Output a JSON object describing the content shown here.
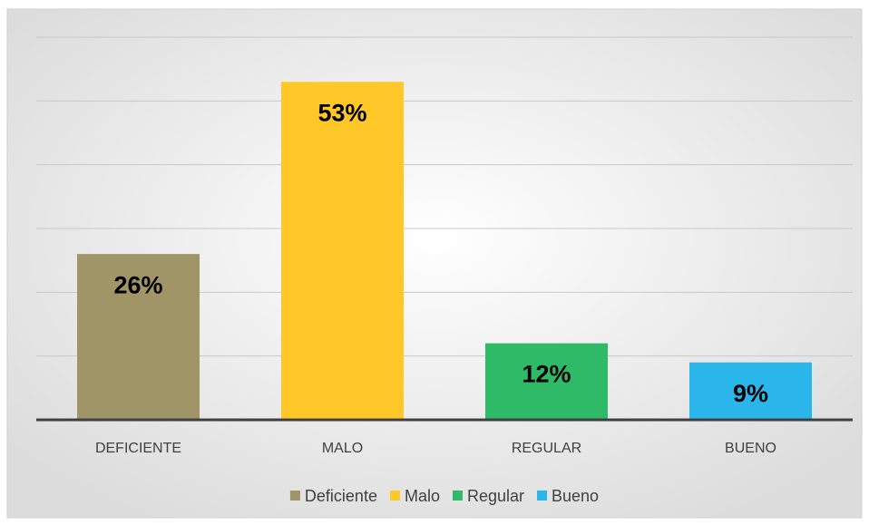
{
  "chart_data": {
    "type": "bar",
    "categories": [
      "DEFICIENTE",
      "MALO",
      "REGULAR",
      "BUENO"
    ],
    "values": [
      26,
      53,
      12,
      9
    ],
    "value_labels": [
      "26%",
      "53%",
      "12%",
      "9%"
    ],
    "colors": [
      "#a09566",
      "#ffc828",
      "#2eba67",
      "#2ab6ea"
    ],
    "legend": [
      "Deficiente",
      "Malo",
      "Regular",
      "Bueno"
    ],
    "ylim": [
      0,
      60
    ],
    "yticks": [
      0,
      10,
      20,
      30,
      40,
      50,
      60
    ],
    "grid": true,
    "legend_position": "bottom"
  }
}
